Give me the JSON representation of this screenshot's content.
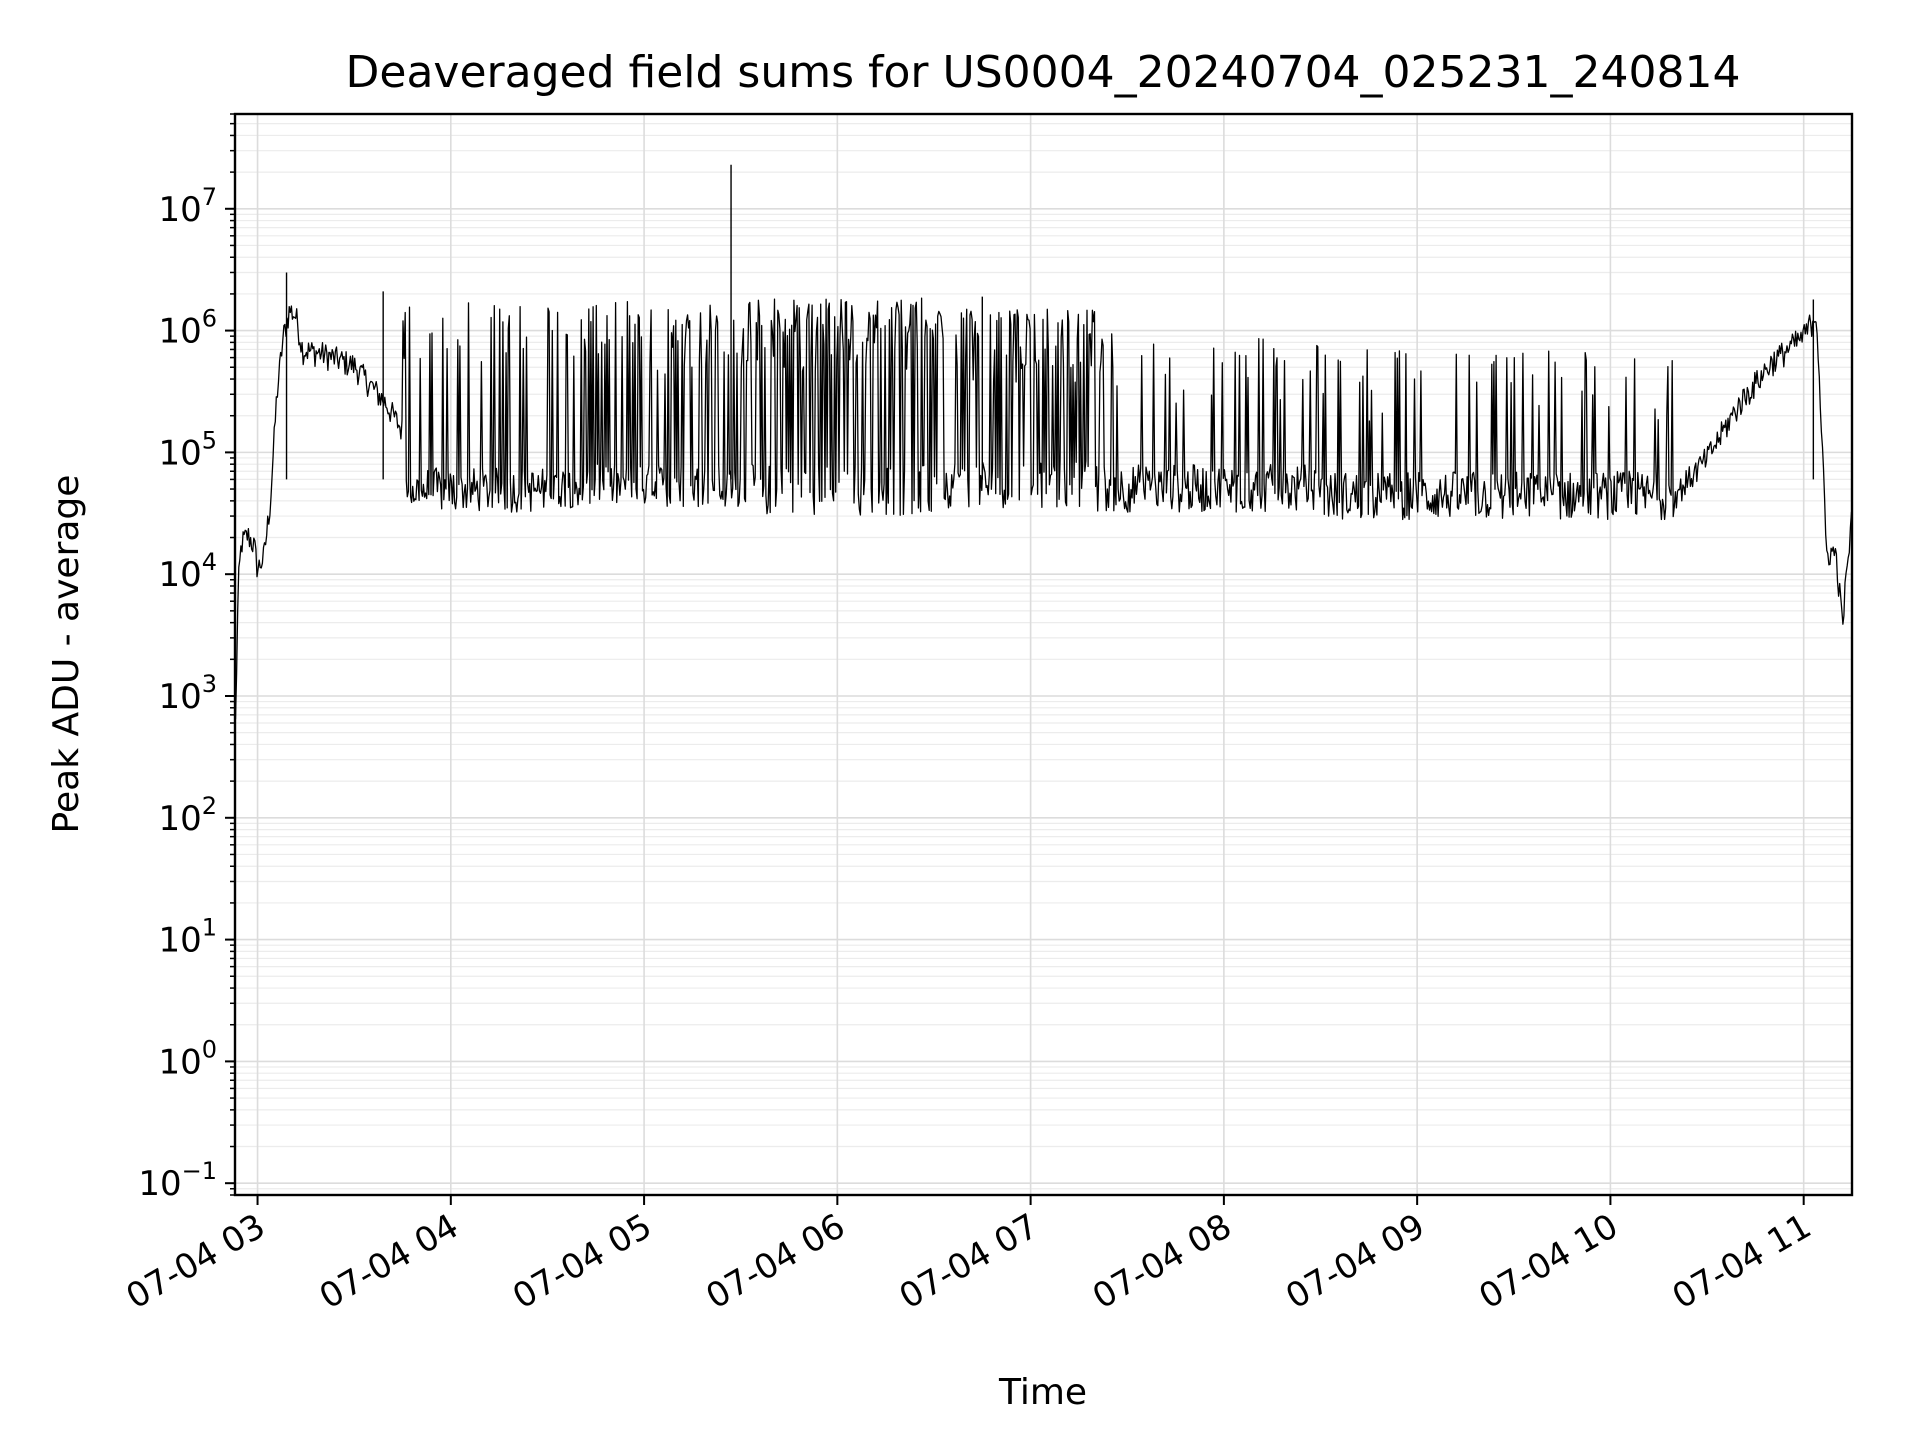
{
  "chart_data": {
    "type": "line",
    "title": "Deaveraged field sums for US0004_20240704_025231_240814",
    "xlabel": "Time",
    "ylabel": "Peak ADU - average",
    "xscale": "time",
    "yscale": "log",
    "xlim": [
      "2024-07-04 02:53",
      "2024-07-04 11:15"
    ],
    "ylim": [
      0.08,
      60000000
    ],
    "x_ticks": [
      {
        "value": "2024-07-04 03:00",
        "label": "07-04 03"
      },
      {
        "value": "2024-07-04 04:00",
        "label": "07-04 04"
      },
      {
        "value": "2024-07-04 05:00",
        "label": "07-04 05"
      },
      {
        "value": "2024-07-04 06:00",
        "label": "07-04 06"
      },
      {
        "value": "2024-07-04 07:00",
        "label": "07-04 07"
      },
      {
        "value": "2024-07-04 08:00",
        "label": "07-04 08"
      },
      {
        "value": "2024-07-04 09:00",
        "label": "07-04 09"
      },
      {
        "value": "2024-07-04 10:00",
        "label": "07-04 10"
      },
      {
        "value": "2024-07-04 11:00",
        "label": "07-04 11"
      }
    ],
    "y_ticks": [
      {
        "value": 0.1,
        "base": "10",
        "exp": "−1"
      },
      {
        "value": 1,
        "base": "10",
        "exp": "0"
      },
      {
        "value": 10,
        "base": "10",
        "exp": "1"
      },
      {
        "value": 100,
        "base": "10",
        "exp": "2"
      },
      {
        "value": 1000,
        "base": "10",
        "exp": "3"
      },
      {
        "value": 10000,
        "base": "10",
        "exp": "4"
      },
      {
        "value": 100000,
        "base": "10",
        "exp": "5"
      },
      {
        "value": 1000000,
        "base": "10",
        "exp": "6"
      },
      {
        "value": 10000000,
        "base": "10",
        "exp": "7"
      }
    ],
    "grid": "major and minor",
    "legend": "none",
    "series": [
      {
        "color": "#000000",
        "points": [
          {
            "x": "2024-07-04 02:53:10",
            "y": 600
          },
          {
            "x": "2024-07-04 02:54:00",
            "y": 8000
          },
          {
            "x": "2024-07-04 02:55:00",
            "y": 18000
          },
          {
            "x": "2024-07-04 02:57:00",
            "y": 21000
          },
          {
            "x": "2024-07-04 02:59:00",
            "y": 17000
          },
          {
            "x": "2024-07-04 03:00:00",
            "y": 11000
          },
          {
            "x": "2024-07-04 03:02:00",
            "y": 14000
          },
          {
            "x": "2024-07-04 03:04:00",
            "y": 40000
          },
          {
            "x": "2024-07-04 03:06:00",
            "y": 300000
          },
          {
            "x": "2024-07-04 03:08:00",
            "y": 900000
          },
          {
            "x": "2024-07-04 03:10:00",
            "y": 1500000
          },
          {
            "x": "2024-07-04 03:12:00",
            "y": 1300000
          },
          {
            "x": "2024-07-04 03:14:00",
            "y": 700000
          },
          {
            "x": "2024-07-04 03:20:00",
            "y": 650000
          },
          {
            "x": "2024-07-04 03:30:00",
            "y": 520000
          },
          {
            "x": "2024-07-04 03:40:00",
            "y": 250000
          },
          {
            "x": "2024-07-04 03:50:00",
            "y": 90000
          },
          {
            "x": "2024-07-04 04:00:00",
            "y": 50000
          },
          {
            "x": "2024-07-04 05:00:00",
            "y": 55000
          },
          {
            "x": "2024-07-04 06:00:00",
            "y": 60000
          },
          {
            "x": "2024-07-04 07:00:00",
            "y": 60000
          },
          {
            "x": "2024-07-04 08:00:00",
            "y": 50000
          },
          {
            "x": "2024-07-04 09:00:00",
            "y": 45000
          },
          {
            "x": "2024-07-04 10:00:00",
            "y": 45000
          },
          {
            "x": "2024-07-04 10:20:00",
            "y": 45000
          },
          {
            "x": "2024-07-04 10:30:00",
            "y": 90000
          },
          {
            "x": "2024-07-04 10:40:00",
            "y": 250000
          },
          {
            "x": "2024-07-04 10:50:00",
            "y": 550000
          },
          {
            "x": "2024-07-04 11:00:00",
            "y": 900000
          },
          {
            "x": "2024-07-04 11:04:00",
            "y": 1400000
          },
          {
            "x": "2024-07-04 11:06:00",
            "y": 80000
          },
          {
            "x": "2024-07-04 11:07:00",
            "y": 15000
          },
          {
            "x": "2024-07-04 11:10:00",
            "y": 15000
          },
          {
            "x": "2024-07-04 11:12:00",
            "y": 4000
          },
          {
            "x": "2024-07-04 11:15:00",
            "y": 30000
          }
        ],
        "bursts": [
          {
            "from": "2024-07-04 03:45",
            "to": "2024-07-04 04:30",
            "peak": 1700000,
            "spikes": 18,
            "floor_min": 32000,
            "floor_max": 75000
          },
          {
            "from": "2024-07-04 04:30",
            "to": "2024-07-04 05:30",
            "peak": 1750000,
            "spikes": 60,
            "floor_min": 35000,
            "floor_max": 80000
          },
          {
            "from": "2024-07-04 05:30",
            "to": "2024-07-04 06:30",
            "peak": 1850000,
            "spikes": 110,
            "floor_min": 30000,
            "floor_max": 80000
          },
          {
            "from": "2024-07-04 06:30",
            "to": "2024-07-04 07:20",
            "peak": 1500000,
            "spikes": 70,
            "floor_min": 35000,
            "floor_max": 90000
          },
          {
            "from": "2024-07-04 07:20",
            "to": "2024-07-04 08:30",
            "peak": 950000,
            "spikes": 28,
            "floor_min": 32000,
            "floor_max": 80000
          },
          {
            "from": "2024-07-04 08:30",
            "to": "2024-07-04 10:20",
            "peak": 700000,
            "spikes": 40,
            "floor_min": 28000,
            "floor_max": 70000
          }
        ],
        "notable_spikes": [
          {
            "x": "2024-07-04 03:09:00",
            "y": 3000000
          },
          {
            "x": "2024-07-04 03:39:00",
            "y": 2100000
          },
          {
            "x": "2024-07-04 05:27:00",
            "y": 23000000
          },
          {
            "x": "2024-07-04 06:45:00",
            "y": 1900000
          },
          {
            "x": "2024-07-04 11:03:00",
            "y": 1800000
          }
        ]
      }
    ]
  }
}
